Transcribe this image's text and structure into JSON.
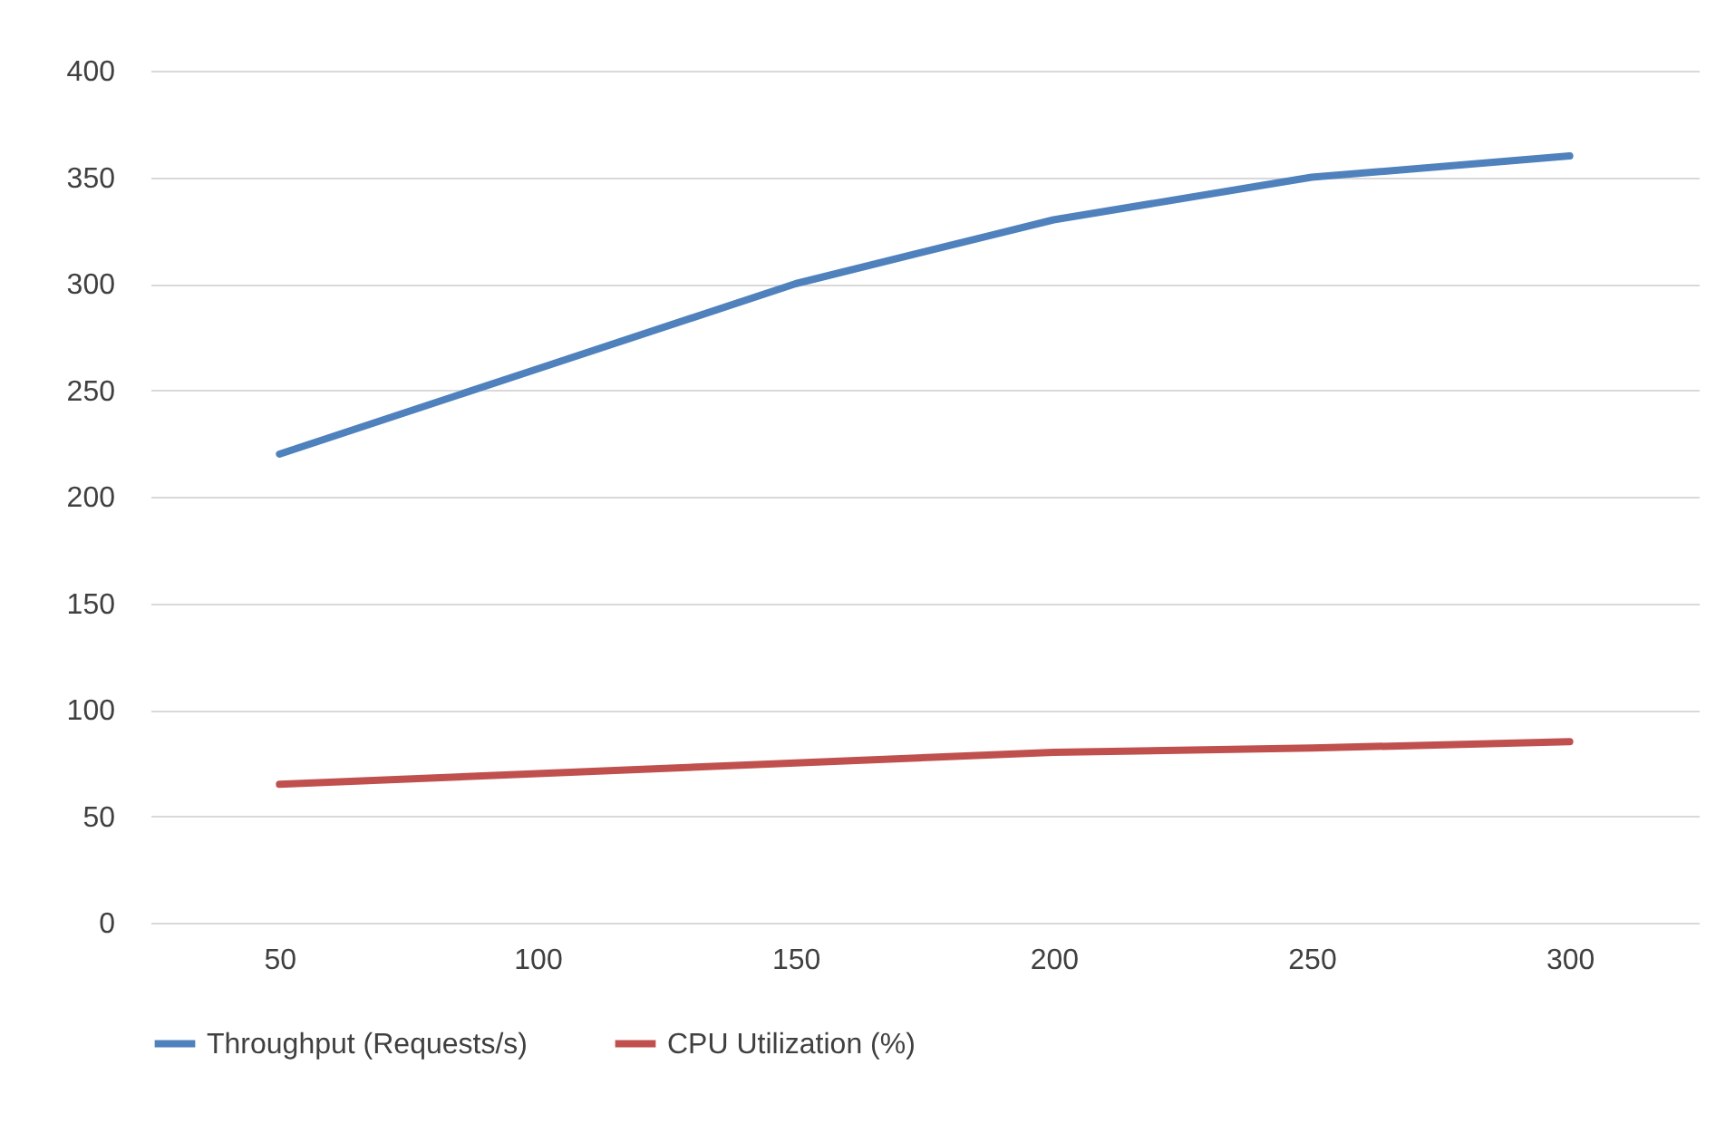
{
  "chart_data": {
    "type": "line",
    "categories": [
      "50",
      "100",
      "150",
      "200",
      "250",
      "300"
    ],
    "series": [
      {
        "name": "Throughput (Requests/s)",
        "color": "#4f81bd",
        "values": [
          220,
          260,
          300,
          330,
          350,
          360
        ]
      },
      {
        "name": "CPU Utilization (%)",
        "color": "#c0504d",
        "values": [
          65,
          70,
          75,
          80,
          82,
          85
        ]
      }
    ],
    "ylim": [
      0,
      400
    ],
    "yticks": [
      0,
      50,
      100,
      150,
      200,
      250,
      300,
      350,
      400
    ],
    "grid": "y",
    "legend": "bottom",
    "marker": "none",
    "line_style": "solid"
  }
}
